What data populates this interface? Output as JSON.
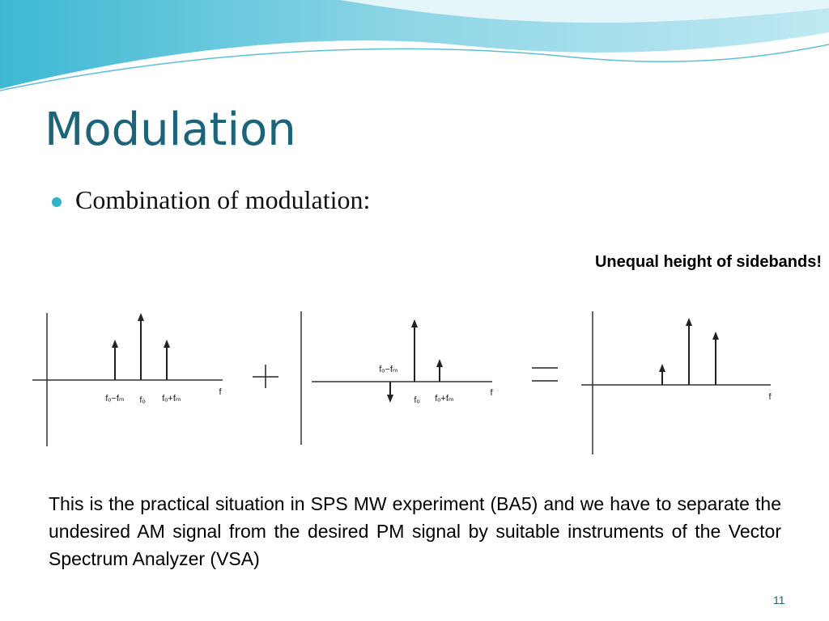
{
  "title": "Modulation",
  "bullet": "Combination of modulation:",
  "note": "Unequal height of sidebands!",
  "diagrams": [
    {
      "labels": [
        "fₒ−fₘ",
        "fₒ",
        "fₒ+fₘ",
        "f"
      ]
    },
    {
      "labels": [
        "fₒ−fₘ",
        "fₒ",
        "fₒ+fₘ",
        "f"
      ]
    },
    {
      "labels": [
        "f"
      ]
    }
  ],
  "paragraph": "This is the practical situation in SPS MW experiment (BA5) and we have to separate the undesired AM signal from the desired PM signal by suitable instruments of the Vector Spectrum Analyzer (VSA)",
  "page_number": "11"
}
